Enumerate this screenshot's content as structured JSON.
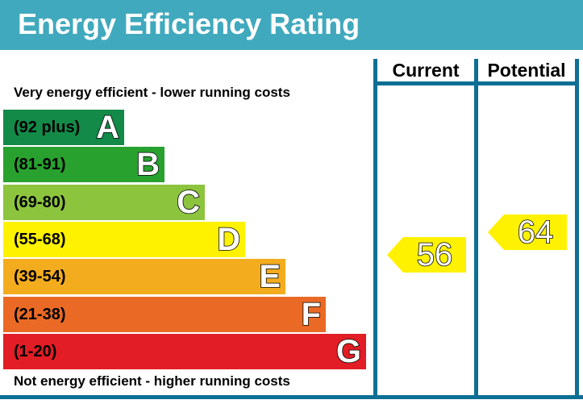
{
  "title": "Energy Efficiency Rating",
  "top_note": "Very energy efficient - lower running costs",
  "bottom_note": "Not energy efficient - higher running costs",
  "columns": {
    "current": "Current",
    "potential": "Potential"
  },
  "chart_data": {
    "type": "bar",
    "title": "Energy Efficiency Rating",
    "bands": [
      {
        "letter": "A",
        "range": "(92 plus)",
        "color": "#138a47"
      },
      {
        "letter": "B",
        "range": "(81-91)",
        "color": "#28a12f"
      },
      {
        "letter": "C",
        "range": "(69-80)",
        "color": "#8cc43e"
      },
      {
        "letter": "D",
        "range": "(55-68)",
        "color": "#fef200"
      },
      {
        "letter": "E",
        "range": "(39-54)",
        "color": "#f4ac1f"
      },
      {
        "letter": "F",
        "range": "(21-38)",
        "color": "#ea6a25"
      },
      {
        "letter": "G",
        "range": "(1-20)",
        "color": "#e21d25"
      }
    ],
    "current": {
      "value": 56,
      "band": "D",
      "color": "#fef200"
    },
    "potential": {
      "value": 64,
      "band": "D",
      "color": "#fef200"
    }
  }
}
